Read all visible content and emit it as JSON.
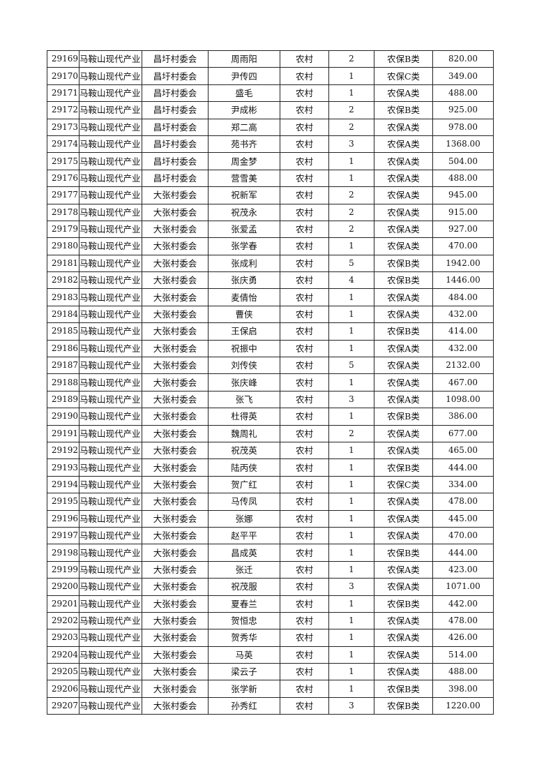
{
  "table": {
    "rows": [
      [
        "29169",
        "马鞍山现代产业",
        "昌圩村委会",
        "周雨阳",
        "农村",
        "2",
        "农保B类",
        "820.00"
      ],
      [
        "29170",
        "马鞍山现代产业",
        "昌圩村委会",
        "尹传四",
        "农村",
        "1",
        "农保C类",
        "349.00"
      ],
      [
        "29171",
        "马鞍山现代产业",
        "昌圩村委会",
        "盛毛",
        "农村",
        "1",
        "农保A类",
        "488.00"
      ],
      [
        "29172",
        "马鞍山现代产业",
        "昌圩村委会",
        "尹成彬",
        "农村",
        "2",
        "农保B类",
        "925.00"
      ],
      [
        "29173",
        "马鞍山现代产业",
        "昌圩村委会",
        "郑二高",
        "农村",
        "2",
        "农保A类",
        "978.00"
      ],
      [
        "29174",
        "马鞍山现代产业",
        "昌圩村委会",
        "苑书齐",
        "农村",
        "3",
        "农保A类",
        "1368.00"
      ],
      [
        "29175",
        "马鞍山现代产业",
        "昌圩村委会",
        "周金梦",
        "农村",
        "1",
        "农保A类",
        "504.00"
      ],
      [
        "29176",
        "马鞍山现代产业",
        "昌圩村委会",
        "营雪美",
        "农村",
        "1",
        "农保A类",
        "488.00"
      ],
      [
        "29177",
        "马鞍山现代产业",
        "大张村委会",
        "祝新军",
        "农村",
        "2",
        "农保A类",
        "945.00"
      ],
      [
        "29178",
        "马鞍山现代产业",
        "大张村委会",
        "祝茂永",
        "农村",
        "2",
        "农保A类",
        "915.00"
      ],
      [
        "29179",
        "马鞍山现代产业",
        "大张村委会",
        "张爱孟",
        "农村",
        "2",
        "农保A类",
        "927.00"
      ],
      [
        "29180",
        "马鞍山现代产业",
        "大张村委会",
        "张学春",
        "农村",
        "1",
        "农保A类",
        "470.00"
      ],
      [
        "29181",
        "马鞍山现代产业",
        "大张村委会",
        "张成利",
        "农村",
        "5",
        "农保B类",
        "1942.00"
      ],
      [
        "29182",
        "马鞍山现代产业",
        "大张村委会",
        "张庆勇",
        "农村",
        "4",
        "农保B类",
        "1446.00"
      ],
      [
        "29183",
        "马鞍山现代产业",
        "大张村委会",
        "麦倩怡",
        "农村",
        "1",
        "农保A类",
        "484.00"
      ],
      [
        "29184",
        "马鞍山现代产业",
        "大张村委会",
        "曹侠",
        "农村",
        "1",
        "农保A类",
        "432.00"
      ],
      [
        "29185",
        "马鞍山现代产业",
        "大张村委会",
        "王保启",
        "农村",
        "1",
        "农保B类",
        "414.00"
      ],
      [
        "29186",
        "马鞍山现代产业",
        "大张村委会",
        "祝振中",
        "农村",
        "1",
        "农保A类",
        "432.00"
      ],
      [
        "29187",
        "马鞍山现代产业",
        "大张村委会",
        "刘传侠",
        "农村",
        "5",
        "农保A类",
        "2132.00"
      ],
      [
        "29188",
        "马鞍山现代产业",
        "大张村委会",
        "张庆峰",
        "农村",
        "1",
        "农保A类",
        "467.00"
      ],
      [
        "29189",
        "马鞍山现代产业",
        "大张村委会",
        "张飞",
        "农村",
        "3",
        "农保A类",
        "1098.00"
      ],
      [
        "29190",
        "马鞍山现代产业",
        "大张村委会",
        "杜得英",
        "农村",
        "1",
        "农保B类",
        "386.00"
      ],
      [
        "29191",
        "马鞍山现代产业",
        "大张村委会",
        "魏周礼",
        "农村",
        "2",
        "农保A类",
        "677.00"
      ],
      [
        "29192",
        "马鞍山现代产业",
        "大张村委会",
        "祝茂英",
        "农村",
        "1",
        "农保A类",
        "465.00"
      ],
      [
        "29193",
        "马鞍山现代产业",
        "大张村委会",
        "陆丙侠",
        "农村",
        "1",
        "农保B类",
        "444.00"
      ],
      [
        "29194",
        "马鞍山现代产业",
        "大张村委会",
        "贺广红",
        "农村",
        "1",
        "农保C类",
        "334.00"
      ],
      [
        "29195",
        "马鞍山现代产业",
        "大张村委会",
        "马传凤",
        "农村",
        "1",
        "农保A类",
        "478.00"
      ],
      [
        "29196",
        "马鞍山现代产业",
        "大张村委会",
        "张娜",
        "农村",
        "1",
        "农保A类",
        "445.00"
      ],
      [
        "29197",
        "马鞍山现代产业",
        "大张村委会",
        "赵平平",
        "农村",
        "1",
        "农保A类",
        "470.00"
      ],
      [
        "29198",
        "马鞍山现代产业",
        "大张村委会",
        "昌成英",
        "农村",
        "1",
        "农保B类",
        "444.00"
      ],
      [
        "29199",
        "马鞍山现代产业",
        "大张村委会",
        "张迁",
        "农村",
        "1",
        "农保A类",
        "423.00"
      ],
      [
        "29200",
        "马鞍山现代产业",
        "大张村委会",
        "祝茂服",
        "农村",
        "3",
        "农保A类",
        "1071.00"
      ],
      [
        "29201",
        "马鞍山现代产业",
        "大张村委会",
        "夏春兰",
        "农村",
        "1",
        "农保B类",
        "442.00"
      ],
      [
        "29202",
        "马鞍山现代产业",
        "大张村委会",
        "贺恒忠",
        "农村",
        "1",
        "农保A类",
        "478.00"
      ],
      [
        "29203",
        "马鞍山现代产业",
        "大张村委会",
        "贺秀华",
        "农村",
        "1",
        "农保A类",
        "426.00"
      ],
      [
        "29204",
        "马鞍山现代产业",
        "大张村委会",
        "马英",
        "农村",
        "1",
        "农保A类",
        "514.00"
      ],
      [
        "29205",
        "马鞍山现代产业",
        "大张村委会",
        "梁云子",
        "农村",
        "1",
        "农保A类",
        "488.00"
      ],
      [
        "29206",
        "马鞍山现代产业",
        "大张村委会",
        "张学新",
        "农村",
        "1",
        "农保B类",
        "398.00"
      ],
      [
        "29207",
        "马鞍山现代产业",
        "大张村委会",
        "孙秀红",
        "农村",
        "3",
        "农保B类",
        "1220.00"
      ]
    ]
  }
}
